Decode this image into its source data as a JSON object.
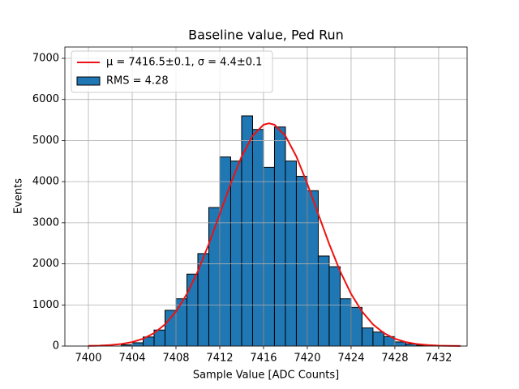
{
  "chart_data": {
    "type": "histogram",
    "title": "Baseline value, Ped Run",
    "xlabel": "Sample Value [ADC Counts]",
    "ylabel": "Events",
    "hist_name": "RMS = 4.28",
    "color": "#1f77b4",
    "edgecolor": "#000000",
    "bins": [
      7403,
      7404,
      7405,
      7406,
      7407,
      7408,
      7409,
      7410,
      7411,
      7412,
      7413,
      7414,
      7415,
      7416,
      7417,
      7418,
      7419,
      7420,
      7421,
      7422,
      7423,
      7424,
      7425,
      7426,
      7427,
      7428,
      7429,
      7430,
      7431
    ],
    "counts": [
      30,
      80,
      220,
      390,
      870,
      1150,
      1750,
      2250,
      3370,
      4600,
      4500,
      5600,
      5270,
      4350,
      5330,
      4500,
      4130,
      3780,
      2190,
      1930,
      1150,
      940,
      440,
      340,
      230,
      100,
      50,
      20
    ],
    "fit": {
      "name": "μ = 7416.5±0.1, σ = 4.4±0.1",
      "color": "#ee1111",
      "x": [
        7400,
        7401,
        7402,
        7403,
        7404,
        7405,
        7406,
        7407,
        7408,
        7409,
        7410,
        7411,
        7412,
        7413,
        7414,
        7415,
        7416,
        7416.5,
        7417,
        7418,
        7419,
        7420,
        7421,
        7422,
        7423,
        7424,
        7425,
        7426,
        7427,
        7428,
        7429,
        7430,
        7431,
        7432,
        7433,
        7434
      ],
      "values": [
        4.8,
        10.9,
        23.8,
        48.9,
        95.8,
        178,
        314,
        527,
        839,
        1268,
        1820,
        2482,
        3213,
        3950,
        4612,
        5114,
        5385,
        5420,
        5385,
        5114,
        4612,
        3950,
        3213,
        2482,
        1820,
        1268,
        839,
        527,
        314,
        178,
        95.8,
        48.9,
        23.8,
        10.9,
        4.8,
        2.0
      ]
    },
    "xlim": [
      7397.85,
      7434.6
    ],
    "ylim": [
      0,
      7276
    ],
    "xticks": [
      7400,
      7404,
      7408,
      7412,
      7416,
      7420,
      7424,
      7428,
      7432
    ],
    "yticks": [
      0,
      1000,
      2000,
      3000,
      4000,
      5000,
      6000,
      7000
    ],
    "grid": true,
    "legend": "upper left"
  }
}
